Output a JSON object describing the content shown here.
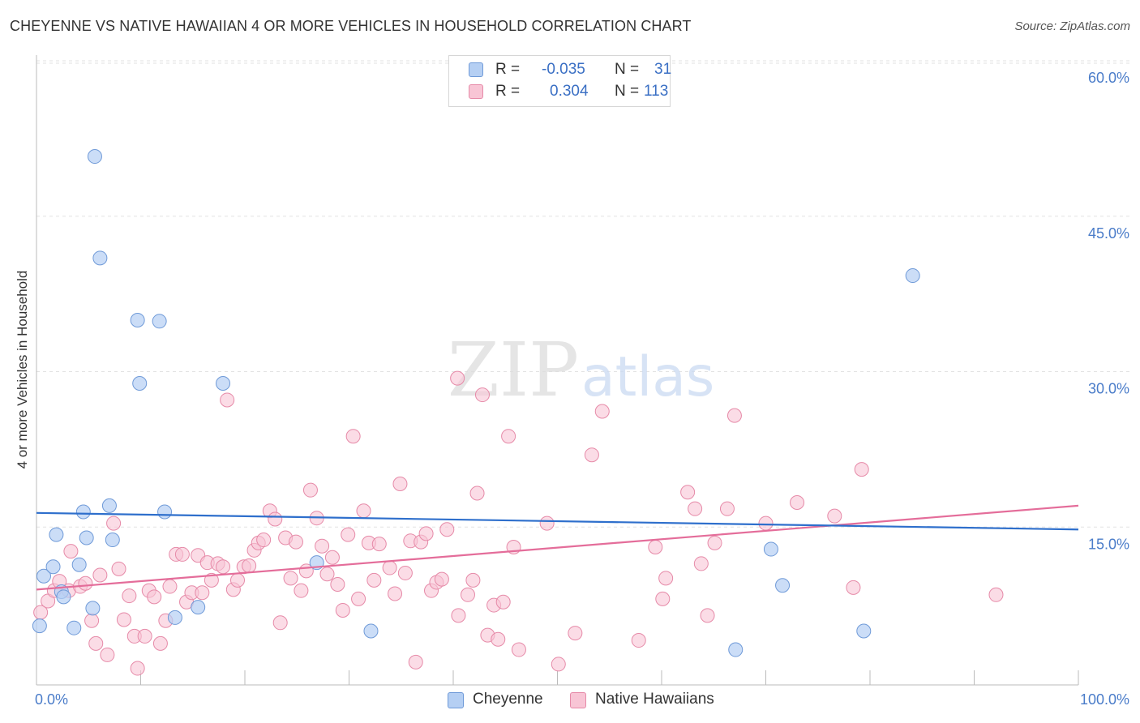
{
  "title": "CHEYENNE VS NATIVE HAWAIIAN 4 OR MORE VEHICLES IN HOUSEHOLD CORRELATION CHART",
  "source": "Source: ZipAtlas.com",
  "watermark": {
    "zip": "ZIP",
    "atlas": "atlas"
  },
  "legend": {
    "r_label": "R =",
    "n_label": "N =",
    "rows": [
      {
        "r": "-0.035",
        "n": "31"
      },
      {
        "r": "0.304",
        "n": "113"
      }
    ]
  },
  "colors": {
    "cheyenne_fill": "#b5cff3",
    "cheyenne_stroke": "#6f9ad8",
    "cheyenne_line": "#2e6fcc",
    "hawaiian_fill": "#f8c5d5",
    "hawaiian_stroke": "#e68aa8",
    "hawaiian_line": "#e46d9a",
    "axis_label": "#4a7cc9",
    "grid": "#e2e2e2"
  },
  "chart_data": {
    "type": "scatter",
    "title": "CHEYENNE VS NATIVE HAWAIIAN 4 OR MORE VEHICLES IN HOUSEHOLD CORRELATION CHART",
    "xlabel": "",
    "ylabel": "4 or more Vehicles in Household",
    "xlim": [
      0,
      100
    ],
    "ylim": [
      0,
      60
    ],
    "x_tick_labels": [
      "0.0%",
      "100.0%"
    ],
    "y_ticks": [
      15,
      30,
      45,
      60
    ],
    "y_tick_labels": [
      "15.0%",
      "30.0%",
      "45.0%",
      "60.0%"
    ],
    "grid": true,
    "legend_position": "top-center",
    "series": [
      {
        "name": "Cheyenne",
        "r": -0.035,
        "n": 31,
        "trend": [
          [
            0,
            16.6
          ],
          [
            100,
            15.0
          ]
        ],
        "points": [
          [
            0.3,
            5.7
          ],
          [
            0.7,
            10.5
          ],
          [
            1.6,
            11.4
          ],
          [
            1.9,
            14.5
          ],
          [
            2.4,
            9.0
          ],
          [
            2.6,
            8.5
          ],
          [
            3.6,
            5.5
          ],
          [
            4.1,
            11.6
          ],
          [
            4.5,
            16.7
          ],
          [
            4.8,
            14.2
          ],
          [
            5.4,
            7.4
          ],
          [
            5.6,
            51.0
          ],
          [
            6.1,
            41.2
          ],
          [
            7.0,
            17.3
          ],
          [
            7.3,
            14.0
          ],
          [
            9.7,
            35.2
          ],
          [
            9.9,
            29.1
          ],
          [
            11.8,
            35.1
          ],
          [
            12.3,
            16.7
          ],
          [
            13.3,
            6.5
          ],
          [
            15.5,
            7.5
          ],
          [
            17.9,
            29.1
          ],
          [
            26.9,
            11.8
          ],
          [
            32.1,
            5.2
          ],
          [
            67.1,
            3.4
          ],
          [
            70.5,
            13.1
          ],
          [
            71.6,
            9.6
          ],
          [
            79.4,
            5.2
          ],
          [
            84.1,
            39.5
          ]
        ]
      },
      {
        "name": "Native Hawaiians",
        "r": 0.304,
        "n": 113,
        "trend": [
          [
            0,
            9.2
          ],
          [
            100,
            17.3
          ]
        ],
        "points": [
          [
            0.4,
            7.0
          ],
          [
            1.1,
            8.1
          ],
          [
            1.7,
            9.1
          ],
          [
            2.2,
            10.0
          ],
          [
            3.1,
            9.1
          ],
          [
            3.3,
            12.9
          ],
          [
            4.2,
            9.5
          ],
          [
            4.7,
            9.8
          ],
          [
            5.3,
            6.2
          ],
          [
            5.7,
            4.0
          ],
          [
            6.1,
            10.6
          ],
          [
            6.8,
            2.9
          ],
          [
            7.4,
            15.6
          ],
          [
            7.9,
            11.2
          ],
          [
            8.4,
            6.3
          ],
          [
            8.9,
            8.6
          ],
          [
            9.4,
            4.7
          ],
          [
            9.7,
            1.6
          ],
          [
            10.4,
            4.7
          ],
          [
            10.8,
            9.1
          ],
          [
            11.3,
            8.5
          ],
          [
            11.9,
            4.0
          ],
          [
            12.4,
            6.2
          ],
          [
            12.8,
            9.5
          ],
          [
            13.4,
            12.6
          ],
          [
            14.0,
            12.6
          ],
          [
            14.4,
            8.0
          ],
          [
            14.9,
            8.9
          ],
          [
            15.5,
            12.5
          ],
          [
            15.9,
            8.9
          ],
          [
            16.4,
            11.8
          ],
          [
            16.8,
            10.1
          ],
          [
            17.4,
            11.7
          ],
          [
            17.9,
            11.4
          ],
          [
            18.3,
            27.5
          ],
          [
            18.9,
            9.2
          ],
          [
            19.3,
            10.1
          ],
          [
            19.9,
            11.4
          ],
          [
            20.4,
            11.5
          ],
          [
            20.9,
            13.0
          ],
          [
            21.3,
            13.7
          ],
          [
            21.8,
            14.0
          ],
          [
            22.4,
            16.8
          ],
          [
            22.9,
            16.0
          ],
          [
            23.4,
            6.0
          ],
          [
            23.9,
            14.2
          ],
          [
            24.4,
            10.3
          ],
          [
            24.9,
            13.8
          ],
          [
            25.4,
            9.1
          ],
          [
            25.9,
            11.0
          ],
          [
            26.3,
            18.8
          ],
          [
            26.9,
            16.1
          ],
          [
            27.4,
            13.4
          ],
          [
            27.9,
            10.7
          ],
          [
            28.4,
            12.3
          ],
          [
            28.9,
            9.7
          ],
          [
            29.4,
            7.2
          ],
          [
            29.9,
            14.5
          ],
          [
            30.4,
            24.0
          ],
          [
            30.9,
            8.3
          ],
          [
            31.4,
            16.8
          ],
          [
            31.9,
            13.7
          ],
          [
            32.4,
            10.1
          ],
          [
            32.9,
            13.6
          ],
          [
            33.9,
            11.3
          ],
          [
            34.4,
            8.8
          ],
          [
            34.9,
            19.4
          ],
          [
            35.4,
            10.8
          ],
          [
            35.9,
            13.9
          ],
          [
            36.4,
            2.2
          ],
          [
            36.9,
            13.8
          ],
          [
            37.4,
            14.6
          ],
          [
            37.9,
            9.1
          ],
          [
            38.4,
            9.9
          ],
          [
            38.9,
            10.2
          ],
          [
            39.4,
            15.0
          ],
          [
            40.4,
            29.6
          ],
          [
            40.5,
            6.7
          ],
          [
            41.4,
            8.7
          ],
          [
            41.9,
            10.1
          ],
          [
            42.3,
            18.5
          ],
          [
            42.8,
            28.0
          ],
          [
            43.3,
            4.8
          ],
          [
            43.9,
            7.7
          ],
          [
            44.3,
            4.4
          ],
          [
            44.8,
            8.0
          ],
          [
            45.3,
            24.0
          ],
          [
            45.8,
            13.3
          ],
          [
            46.3,
            3.4
          ],
          [
            49.0,
            15.6
          ],
          [
            50.1,
            2.0
          ],
          [
            51.7,
            5.0
          ],
          [
            53.3,
            22.2
          ],
          [
            54.3,
            26.4
          ],
          [
            57.8,
            4.3
          ],
          [
            59.4,
            13.3
          ],
          [
            60.1,
            8.3
          ],
          [
            60.4,
            10.3
          ],
          [
            62.5,
            18.6
          ],
          [
            63.2,
            17.0
          ],
          [
            63.8,
            11.7
          ],
          [
            64.4,
            6.7
          ],
          [
            65.1,
            13.7
          ],
          [
            66.3,
            17.0
          ],
          [
            67.0,
            26.0
          ],
          [
            70.0,
            15.6
          ],
          [
            73.0,
            17.6
          ],
          [
            76.6,
            16.3
          ],
          [
            78.4,
            9.4
          ],
          [
            79.2,
            20.8
          ],
          [
            92.1,
            8.7
          ]
        ]
      }
    ]
  }
}
